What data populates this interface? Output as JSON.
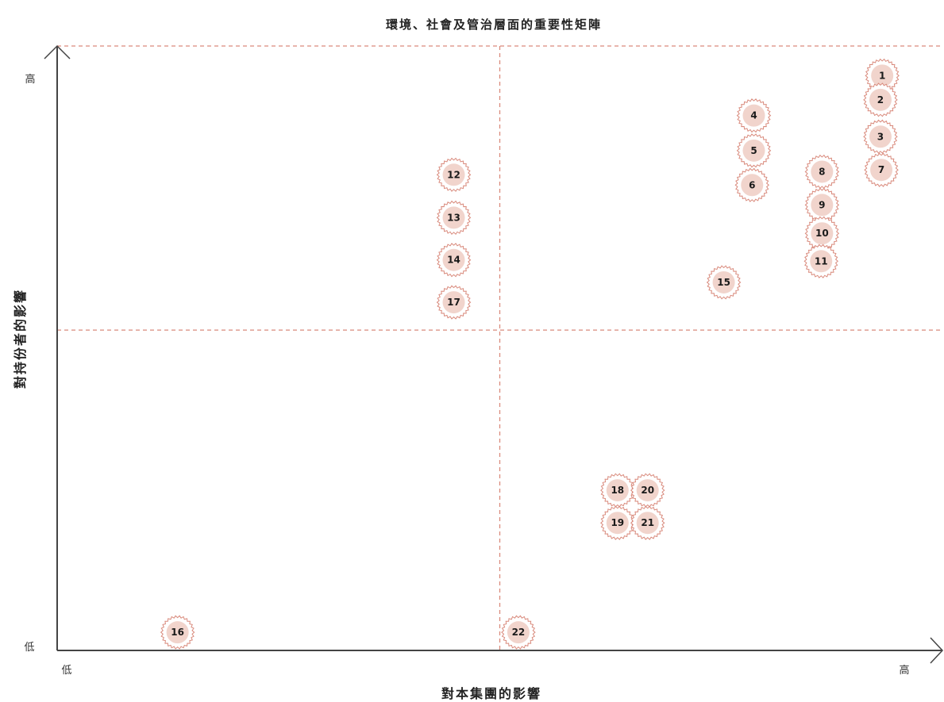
{
  "chart_data": {
    "type": "scatter",
    "title": "環境、社會及管治層面的重要性矩陣",
    "xlabel": "對本集團的影響",
    "ylabel": "對持份者的影響",
    "x_tick_low": "低",
    "x_tick_high": "高",
    "y_tick_low": "低",
    "y_tick_high": "高",
    "xlim": [
      0,
      100
    ],
    "ylim": [
      0,
      100
    ],
    "divider_x": 50,
    "divider_y": 53,
    "grid": false,
    "colors": {
      "point_fill": "#f1d4cc",
      "point_outline": "#d98a7c",
      "divider": "#d98a7c",
      "axis": "#444444"
    },
    "points": [
      {
        "label": "1",
        "x": 93.2,
        "y": 95.1
      },
      {
        "label": "2",
        "x": 93.0,
        "y": 91.1
      },
      {
        "label": "3",
        "x": 93.0,
        "y": 85.0
      },
      {
        "label": "4",
        "x": 78.7,
        "y": 88.5
      },
      {
        "label": "5",
        "x": 78.7,
        "y": 82.7
      },
      {
        "label": "6",
        "x": 78.5,
        "y": 77.0
      },
      {
        "label": "7",
        "x": 93.1,
        "y": 79.5
      },
      {
        "label": "8",
        "x": 86.4,
        "y": 79.2
      },
      {
        "label": "9",
        "x": 86.4,
        "y": 73.7
      },
      {
        "label": "10",
        "x": 86.4,
        "y": 69.0
      },
      {
        "label": "11",
        "x": 86.3,
        "y": 64.4
      },
      {
        "label": "12",
        "x": 44.8,
        "y": 78.7
      },
      {
        "label": "13",
        "x": 44.8,
        "y": 71.6
      },
      {
        "label": "14",
        "x": 44.8,
        "y": 64.6
      },
      {
        "label": "15",
        "x": 75.3,
        "y": 60.9
      },
      {
        "label": "16",
        "x": 13.6,
        "y": 3.0
      },
      {
        "label": "17",
        "x": 44.8,
        "y": 57.6
      },
      {
        "label": "18",
        "x": 63.3,
        "y": 26.5
      },
      {
        "label": "19",
        "x": 63.3,
        "y": 21.1
      },
      {
        "label": "20",
        "x": 66.7,
        "y": 26.5
      },
      {
        "label": "21",
        "x": 66.7,
        "y": 21.1
      },
      {
        "label": "22",
        "x": 52.1,
        "y": 3.0
      }
    ]
  }
}
